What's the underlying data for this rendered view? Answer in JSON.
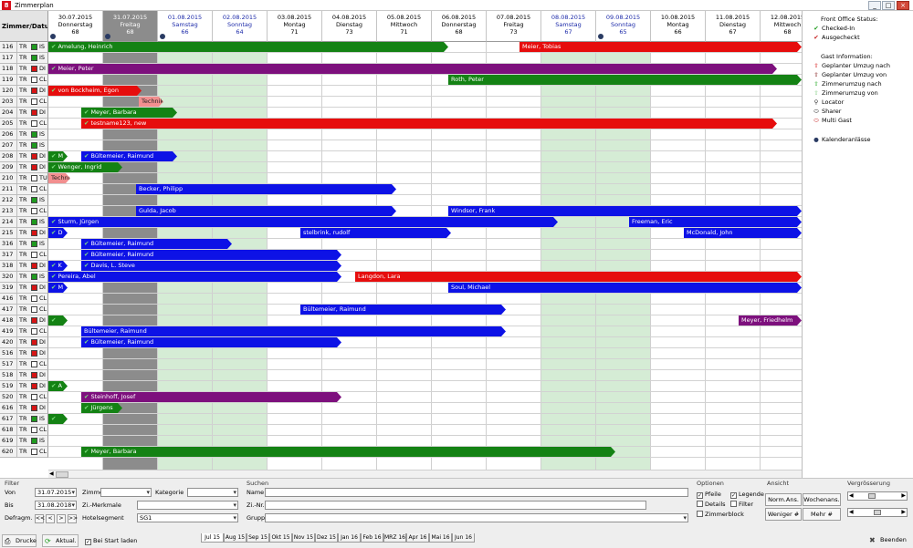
{
  "window": {
    "title": "Zimmerplan",
    "controls": [
      "_",
      "□",
      "×"
    ]
  },
  "grid": {
    "corner_label": "Zimmer/Datum",
    "days": [
      {
        "date": "30.07.2015",
        "weekday": "Donnerstag",
        "count": "68",
        "type": "normal",
        "marker": true
      },
      {
        "date": "31.07.2015",
        "weekday": "Freitag",
        "count": "68",
        "type": "today",
        "marker": true
      },
      {
        "date": "01.08.2015",
        "weekday": "Samstag",
        "count": "66",
        "type": "wknd",
        "marker": true
      },
      {
        "date": "02.08.2015",
        "weekday": "Sonntag",
        "count": "64",
        "type": "wknd",
        "marker": false
      },
      {
        "date": "03.08.2015",
        "weekday": "Montag",
        "count": "71",
        "type": "normal",
        "marker": false
      },
      {
        "date": "04.08.2015",
        "weekday": "Dienstag",
        "count": "73",
        "type": "normal",
        "marker": false
      },
      {
        "date": "05.08.2015",
        "weekday": "Mittwoch",
        "count": "71",
        "type": "normal",
        "marker": false
      },
      {
        "date": "06.08.2015",
        "weekday": "Donnerstag",
        "count": "68",
        "type": "normal",
        "marker": false
      },
      {
        "date": "07.08.2015",
        "weekday": "Freitag",
        "count": "73",
        "type": "normal",
        "marker": false
      },
      {
        "date": "08.08.2015",
        "weekday": "Samstag",
        "count": "67",
        "type": "wknd",
        "marker": false
      },
      {
        "date": "09.08.2015",
        "weekday": "Sonntag",
        "count": "65",
        "type": "wknd",
        "marker": true
      },
      {
        "date": "10.08.2015",
        "weekday": "Montag",
        "count": "66",
        "type": "normal",
        "marker": false
      },
      {
        "date": "11.08.2015",
        "weekday": "Dienstag",
        "count": "67",
        "type": "normal",
        "marker": false
      },
      {
        "date": "12.08.2015",
        "weekday": "Mittwoch",
        "count": "68",
        "type": "normal",
        "marker": false
      }
    ],
    "rows": [
      {
        "room": "116",
        "type": "TR",
        "status": "green",
        "code": "IS"
      },
      {
        "room": "117",
        "type": "TR",
        "status": "green",
        "code": "IS"
      },
      {
        "room": "118",
        "type": "TR",
        "status": "red",
        "code": "DI"
      },
      {
        "room": "119",
        "type": "TR",
        "status": "white",
        "code": "CL"
      },
      {
        "room": "120",
        "type": "TR",
        "status": "red",
        "code": "DI"
      },
      {
        "room": "203",
        "type": "TR",
        "status": "white",
        "code": "CL"
      },
      {
        "room": "204",
        "type": "TR",
        "status": "red",
        "code": "DI"
      },
      {
        "room": "205",
        "type": "TR",
        "status": "white",
        "code": "CL"
      },
      {
        "room": "206",
        "type": "TR",
        "status": "green",
        "code": "IS"
      },
      {
        "room": "207",
        "type": "TR",
        "status": "green",
        "code": "IS"
      },
      {
        "room": "208",
        "type": "TR",
        "status": "red",
        "code": "DI"
      },
      {
        "room": "209",
        "type": "TR",
        "status": "red",
        "code": "DI"
      },
      {
        "room": "210",
        "type": "TR",
        "status": "white",
        "code": "TU"
      },
      {
        "room": "211",
        "type": "TR",
        "status": "white",
        "code": "CL"
      },
      {
        "room": "212",
        "type": "TR",
        "status": "green",
        "code": "IS"
      },
      {
        "room": "213",
        "type": "TR",
        "status": "white",
        "code": "CL"
      },
      {
        "room": "214",
        "type": "TR",
        "status": "green",
        "code": "IS"
      },
      {
        "room": "215",
        "type": "TR",
        "status": "red",
        "code": "DI"
      },
      {
        "room": "316",
        "type": "TR",
        "status": "green",
        "code": "IS"
      },
      {
        "room": "317",
        "type": "TR",
        "status": "white",
        "code": "CL"
      },
      {
        "room": "318",
        "type": "TR",
        "status": "red",
        "code": "DI"
      },
      {
        "room": "320",
        "type": "TR",
        "status": "green",
        "code": "IS"
      },
      {
        "room": "319",
        "type": "TR",
        "status": "red",
        "code": "DI"
      },
      {
        "room": "416",
        "type": "TR",
        "status": "white",
        "code": "CL"
      },
      {
        "room": "417",
        "type": "TR",
        "status": "white",
        "code": "CL"
      },
      {
        "room": "418",
        "type": "TR",
        "status": "red",
        "code": "DI"
      },
      {
        "room": "419",
        "type": "TR",
        "status": "white",
        "code": "CL"
      },
      {
        "room": "420",
        "type": "TR",
        "status": "red",
        "code": "DI"
      },
      {
        "room": "516",
        "type": "TR",
        "status": "red",
        "code": "DI"
      },
      {
        "room": "517",
        "type": "TR",
        "status": "white",
        "code": "CL"
      },
      {
        "room": "518",
        "type": "TR",
        "status": "red",
        "code": "DI"
      },
      {
        "room": "519",
        "type": "TR",
        "status": "red",
        "code": "DI"
      },
      {
        "room": "520",
        "type": "TR",
        "status": "white",
        "code": "CL"
      },
      {
        "room": "616",
        "type": "TR",
        "status": "red",
        "code": "DI"
      },
      {
        "room": "617",
        "type": "TR",
        "status": "green",
        "code": "IS"
      },
      {
        "room": "618",
        "type": "TR",
        "status": "white",
        "code": "CL"
      },
      {
        "room": "619",
        "type": "TR",
        "status": "green",
        "code": "IS"
      },
      {
        "room": "620",
        "type": "TR",
        "status": "white",
        "code": "CL"
      }
    ],
    "bookings": [
      {
        "row": 0,
        "start": 0.0,
        "end": 7.3,
        "color": "#148214",
        "label": "Amelung, Heinrich",
        "checked": true
      },
      {
        "row": 0,
        "start": 8.6,
        "end": 14,
        "color": "#e60d0d",
        "label": "Meier, Tobias",
        "checked": false
      },
      {
        "row": 2,
        "start": 0.0,
        "end": 13.3,
        "color": "#7d107d",
        "label": "Meier, Peter",
        "checked": true
      },
      {
        "row": 3,
        "start": 7.3,
        "end": 14,
        "color": "#148214",
        "label": "Roth, Peter",
        "checked": false
      },
      {
        "row": 4,
        "start": 0.0,
        "end": 1.7,
        "color": "#e60d0d",
        "label": "von Bockheim, Egon",
        "checked": true
      },
      {
        "row": 5,
        "start": 1.65,
        "end": 2.1,
        "color": "#f28f8f",
        "label": "Technik",
        "checked": false,
        "dark": true
      },
      {
        "row": 6,
        "start": 0.6,
        "end": 2.35,
        "color": "#148214",
        "label": "Meyer, Barbara",
        "checked": true
      },
      {
        "row": 7,
        "start": 0.6,
        "end": 13.3,
        "color": "#e60d0d",
        "label": "testname123, new",
        "checked": true
      },
      {
        "row": 10,
        "start": 0.0,
        "end": 0.35,
        "color": "#148214",
        "label": "M",
        "checked": true
      },
      {
        "row": 10,
        "start": 0.6,
        "end": 2.35,
        "color": "#0d12e6",
        "label": "Bültemeier, Raimund",
        "checked": true
      },
      {
        "row": 11,
        "start": 0.0,
        "end": 1.35,
        "color": "#148214",
        "label": "Wenger, Ingrid",
        "checked": true
      },
      {
        "row": 12,
        "start": 0.0,
        "end": 0.4,
        "color": "#f28f8f",
        "label": "Technik",
        "checked": false,
        "dark": true
      },
      {
        "row": 13,
        "start": 1.6,
        "end": 6.35,
        "color": "#0d12e6",
        "label": "Becker, Philipp",
        "checked": false
      },
      {
        "row": 15,
        "start": 1.6,
        "end": 6.35,
        "color": "#0d12e6",
        "label": "Gulda, Jacob",
        "checked": false
      },
      {
        "row": 15,
        "start": 7.3,
        "end": 14,
        "color": "#0d12e6",
        "label": "Windsor, Frank",
        "checked": false
      },
      {
        "row": 16,
        "start": 0.0,
        "end": 9.3,
        "color": "#0d12e6",
        "label": "Sturm, Jürgen",
        "checked": true
      },
      {
        "row": 16,
        "start": 10.6,
        "end": 14,
        "color": "#0d12e6",
        "label": "Freeman, Eric",
        "checked": false
      },
      {
        "row": 17,
        "start": 0.0,
        "end": 0.35,
        "color": "#0d12e6",
        "label": "D",
        "checked": true
      },
      {
        "row": 17,
        "start": 4.6,
        "end": 7.35,
        "color": "#0d12e6",
        "label": "stelbrink, rudolf",
        "checked": false
      },
      {
        "row": 17,
        "start": 11.6,
        "end": 14,
        "color": "#0d12e6",
        "label": "McDonald, John",
        "checked": false
      },
      {
        "row": 18,
        "start": 0.6,
        "end": 3.35,
        "color": "#0d12e6",
        "label": "Bültemeier, Raimund",
        "checked": true
      },
      {
        "row": 19,
        "start": 0.6,
        "end": 5.35,
        "color": "#0d12e6",
        "label": "Bültemeier, Raimund",
        "checked": true
      },
      {
        "row": 20,
        "start": 0.0,
        "end": 0.35,
        "color": "#0d12e6",
        "label": "K",
        "checked": true
      },
      {
        "row": 20,
        "start": 0.6,
        "end": 5.35,
        "color": "#0d12e6",
        "label": "Davis, L. Steve",
        "checked": true
      },
      {
        "row": 21,
        "start": 0.0,
        "end": 5.35,
        "color": "#0d12e6",
        "label": "Pereira, Abel",
        "checked": true
      },
      {
        "row": 21,
        "start": 5.6,
        "end": 14,
        "color": "#e60d0d",
        "label": "Langdon, Lara",
        "checked": false
      },
      {
        "row": 22,
        "start": 0.0,
        "end": 0.35,
        "color": "#0d12e6",
        "label": "M",
        "checked": true
      },
      {
        "row": 22,
        "start": 7.3,
        "end": 14,
        "color": "#0d12e6",
        "label": "Soul, Michael",
        "checked": false
      },
      {
        "row": 24,
        "start": 4.6,
        "end": 8.35,
        "color": "#0d12e6",
        "label": "Bültemeier, Raimund",
        "checked": false
      },
      {
        "row": 25,
        "start": 0.0,
        "end": 0.35,
        "color": "#148214",
        "label": "",
        "checked": true
      },
      {
        "row": 25,
        "start": 12.6,
        "end": 14,
        "color": "#7d107d",
        "label": "Meyer, Friedhelm",
        "checked": false
      },
      {
        "row": 26,
        "start": 0.6,
        "end": 8.35,
        "color": "#0d12e6",
        "label": "Bültemeier, Raimund",
        "checked": false
      },
      {
        "row": 27,
        "start": 0.6,
        "end": 5.35,
        "color": "#0d12e6",
        "label": "Bültemeier, Raimund",
        "checked": true
      },
      {
        "row": 31,
        "start": 0.0,
        "end": 0.35,
        "color": "#148214",
        "label": "A",
        "checked": true
      },
      {
        "row": 32,
        "start": 0.6,
        "end": 5.35,
        "color": "#7d107d",
        "label": "Steinhoff, Josef",
        "checked": true
      },
      {
        "row": 33,
        "start": 0.6,
        "end": 1.35,
        "color": "#148214",
        "label": "Jürgens",
        "checked": true
      },
      {
        "row": 34,
        "start": 0.0,
        "end": 0.35,
        "color": "#148214",
        "label": "",
        "checked": true
      },
      {
        "row": 37,
        "start": 0.6,
        "end": 10.35,
        "color": "#148214",
        "label": "Meyer, Barbara",
        "checked": true
      }
    ]
  },
  "legend": {
    "front_office_title": "Front Office Status:",
    "front_office_items": [
      {
        "icon": "check-green-icon",
        "glyph": "✔",
        "color": "#1a9a1a",
        "label": "Checked-In"
      },
      {
        "icon": "check-red-icon",
        "glyph": "✔",
        "color": "#c41b1b",
        "label": "Ausgecheckt"
      }
    ],
    "guest_title": "Gast Information:",
    "guest_items": [
      {
        "icon": "arrow-up-red-icon",
        "glyph": "⇧",
        "color": "#d51a1a",
        "label": "Geplanter Umzug nach"
      },
      {
        "icon": "arrow-down-red-icon",
        "glyph": "⇧",
        "color": "#7a1010",
        "label": "Geplanter Umzug von"
      },
      {
        "icon": "arrow-up-green-icon",
        "glyph": "⇧",
        "color": "#23a823",
        "label": "Zimmerumzug nach"
      },
      {
        "icon": "arrow-down-green-icon",
        "glyph": "⇧",
        "color": "#8ad08a",
        "label": "Zimmerumzug von"
      },
      {
        "icon": "locator-icon",
        "glyph": "⚲",
        "color": "#333333",
        "label": "Locator"
      },
      {
        "icon": "sharer-icon",
        "glyph": "⬭",
        "color": "#111111",
        "label": "Sharer"
      },
      {
        "icon": "multi-guest-icon",
        "glyph": "⬭",
        "color": "#c41b1b",
        "label": "Multi Gast"
      }
    ],
    "calendar_item": {
      "icon": "calendar-events-icon",
      "glyph": "●",
      "color": "#2a3b63",
      "label": "Kalenderanlässe"
    }
  },
  "filter": {
    "title": "Filter",
    "von_label": "Von",
    "von_value": "31.07.2015",
    "bis_label": "Bis",
    "bis_value": "31.08.2018",
    "defragm_label": "Defragm.",
    "nav_buttons": [
      "<<",
      "<",
      ">",
      ">>"
    ],
    "zimmer_label": "Zimmer",
    "zimmer_value": "",
    "kategorie_label": "Kategorie",
    "kategorie_value": "",
    "merkmale_label": "Zi.-Merkmale",
    "merkmale_value": "",
    "segment_label": "Hotelsegment",
    "segment_value": "SG1"
  },
  "suchen": {
    "title": "Suchen",
    "name_label": "Name",
    "name_value": "",
    "zinr_label": "Zi.-Nr.",
    "zinr_value": "",
    "gruppe_label": "Gruppe",
    "gruppe_value": ""
  },
  "optionen": {
    "title": "Optionen",
    "items": [
      {
        "label": "Pfeile",
        "checked": true
      },
      {
        "label": "Legende",
        "checked": true
      },
      {
        "label": "Details",
        "checked": false
      },
      {
        "label": "Filter",
        "checked": false
      },
      {
        "label": "Zimmerblock",
        "checked": false
      }
    ]
  },
  "ansicht": {
    "title": "Ansicht",
    "buttons": [
      "Norm.Ans.",
      "Wochenans.",
      "Weniger #",
      "Mehr #"
    ]
  },
  "vergroesserung": {
    "title": "Vergrösserung",
    "slider1": 0.3,
    "slider2": 0.45
  },
  "month_tabs": [
    "Jul 15",
    "Aug 15",
    "Sep 15",
    "Okt 15",
    "Nov 15",
    "Dez 15",
    "Jan 16",
    "Feb 16",
    "MRZ 16",
    "Apr 16",
    "Mai 16",
    "Jun 16"
  ],
  "footer": {
    "print_label": "Drucke",
    "refresh_label": "Aktual.",
    "start_label": "Bei Start laden",
    "start_checked": true,
    "exit_label": "Beenden"
  }
}
